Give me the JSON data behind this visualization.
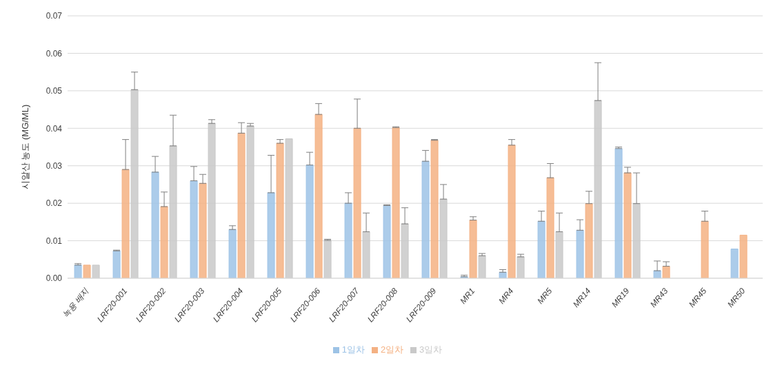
{
  "chart_data": {
    "type": "bar",
    "ylabel": "시알산 농도 (MG/ML)",
    "categories": [
      "녹용 배지",
      "LRF20-001",
      "LRF20-002",
      "LRF20-003",
      "LRF20-004",
      "LRF20-005",
      "LRF20-006",
      "LRF20-007",
      "LRF20-008",
      "LRF20-009",
      "MR1",
      "MR4",
      "MR5",
      "MR14",
      "MR19",
      "MR43",
      "MR45",
      "MR50"
    ],
    "series": [
      {
        "name": "1일차",
        "color": "#9dc3e6",
        "values": [
          0.0035,
          0.0073,
          0.0283,
          0.026,
          0.013,
          0.0228,
          0.0302,
          0.02,
          0.0194,
          0.0312,
          0.0004,
          0.0016,
          0.0152,
          0.0128,
          0.0346,
          0.002,
          null,
          0.0078
        ],
        "errors": [
          [
            0.0035,
            0.0039
          ],
          [
            0.0073,
            0.0075
          ],
          [
            0.0283,
            0.0325
          ],
          [
            0.026,
            0.0298
          ],
          [
            0.013,
            0.014
          ],
          [
            0.0228,
            0.0328
          ],
          [
            0.0302,
            0.0336
          ],
          [
            0.02,
            0.0228
          ],
          [
            0.0194,
            0.0196
          ],
          [
            0.0312,
            0.0341
          ],
          [
            0.0004,
            0.0008
          ],
          [
            0.0016,
            0.0023
          ],
          [
            0.0152,
            0.0179
          ],
          [
            0.0128,
            0.0156
          ],
          [
            0.0346,
            0.035
          ],
          [
            0.002,
            0.0046
          ],
          null,
          null
        ]
      },
      {
        "name": "2일차",
        "color": "#f4b183",
        "values": [
          0.0035,
          0.029,
          0.0191,
          0.0253,
          0.0387,
          0.036,
          0.0437,
          0.04,
          0.0402,
          0.0368,
          0.0155,
          0.0355,
          0.0268,
          0.0199,
          0.0281,
          0.0032,
          0.0152,
          0.0115
        ],
        "errors": [
          null,
          [
            0.029,
            0.037
          ],
          [
            0.0191,
            0.023
          ],
          [
            0.0253,
            0.0277
          ],
          [
            0.0387,
            0.0415
          ],
          [
            0.036,
            0.037
          ],
          [
            0.0437,
            0.0466
          ],
          [
            0.04,
            0.0478
          ],
          [
            0.0402,
            0.0404
          ],
          [
            0.0368,
            0.037
          ],
          [
            0.0155,
            0.0164
          ],
          [
            0.0355,
            0.037
          ],
          [
            0.0268,
            0.0306
          ],
          [
            0.0199,
            0.0232
          ],
          [
            0.0281,
            0.0296
          ],
          [
            0.0032,
            0.0044
          ],
          [
            0.0152,
            0.0179
          ],
          null
        ]
      },
      {
        "name": "3일차",
        "color": "#c9c9c9",
        "values": [
          0.0035,
          0.0503,
          0.0353,
          0.0413,
          0.0406,
          0.0372,
          0.0101,
          0.0124,
          0.0145,
          0.0211,
          0.006,
          0.0057,
          0.0124,
          0.0474,
          0.0199,
          null,
          null,
          null
        ],
        "errors": [
          null,
          [
            0.0503,
            0.055
          ],
          [
            0.0353,
            0.0435
          ],
          [
            0.0413,
            0.0423
          ],
          [
            0.0406,
            0.0413
          ],
          null,
          [
            0.0101,
            0.0104
          ],
          [
            0.0124,
            0.0174
          ],
          [
            0.0145,
            0.0188
          ],
          [
            0.0211,
            0.025
          ],
          [
            0.006,
            0.0066
          ],
          [
            0.0057,
            0.0064
          ],
          [
            0.0124,
            0.0174
          ],
          [
            0.0474,
            0.0575
          ],
          [
            0.0199,
            0.0281
          ],
          null,
          null,
          null
        ]
      }
    ],
    "ylim": [
      0,
      0.07
    ],
    "yticks": [
      {
        "value": 0,
        "label": "0.00"
      },
      0.01,
      0.02,
      0.03,
      0.04,
      0.05,
      0.06,
      0.07
    ],
    "grid": "y",
    "legend": "bottom"
  }
}
